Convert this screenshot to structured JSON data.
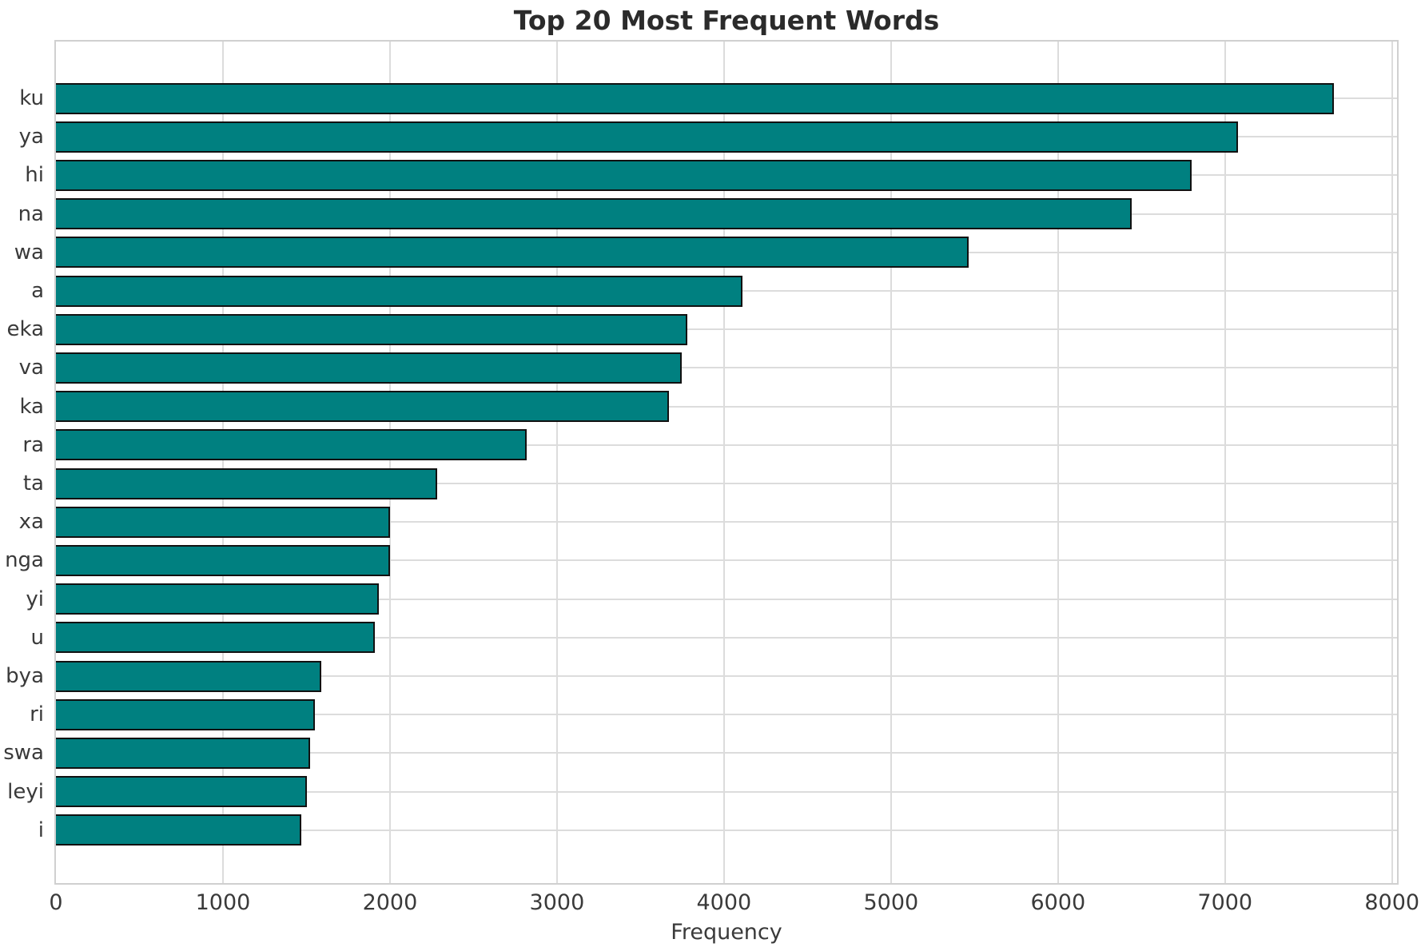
{
  "chart_data": {
    "type": "bar",
    "orientation": "horizontal",
    "title": "Top 20 Most Frequent Words",
    "xlabel": "Frequency",
    "ylabel": "",
    "categories": [
      "ku",
      "ya",
      "hi",
      "na",
      "wa",
      "a",
      "eka",
      "va",
      "ka",
      "ra",
      "ta",
      "xa",
      "nga",
      "yi",
      "u",
      "bya",
      "ri",
      "swa",
      "leyi",
      "i"
    ],
    "values": [
      7650,
      7080,
      6800,
      6440,
      5465,
      4110,
      3780,
      3745,
      3670,
      2820,
      2285,
      2000,
      2000,
      1935,
      1910,
      1590,
      1550,
      1520,
      1505,
      1470
    ],
    "xlim": [
      0,
      8030
    ],
    "x_ticks": [
      0,
      1000,
      2000,
      3000,
      4000,
      5000,
      6000,
      7000,
      8000
    ],
    "grid": true,
    "legend": "none",
    "colors": {
      "bar_fill": "#008080",
      "bar_edge": "#111111",
      "grid_line": "#dcdcdc",
      "spine": "#d0d0d0",
      "tick_text": "#3a3a3a",
      "title_text": "#2b2b2b"
    }
  }
}
